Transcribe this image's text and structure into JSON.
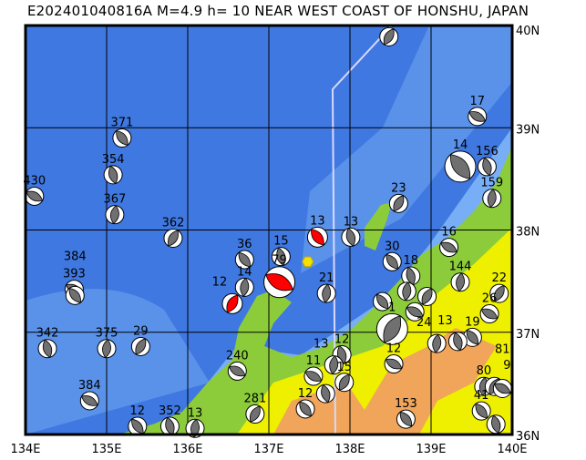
{
  "title": "E202401040816A M=4.9 h= 10 NEAR WEST COAST OF HONSHU, JAPAN",
  "map": {
    "lon_range": [
      134,
      140
    ],
    "lat_range": [
      36,
      40
    ],
    "lon_labels": [
      "134E",
      "135E",
      "136E",
      "137E",
      "138E",
      "139E",
      "140E"
    ],
    "lat_labels": [
      "36N",
      "37N",
      "38N",
      "39N",
      "40N"
    ],
    "colors": {
      "sea_deep": "#3f78e0",
      "sea_shallow": "#78aef5",
      "land_low": "#8ccc3a",
      "land_mid": "#eef000",
      "land_high": "#f0a55a",
      "event_highlight": "#ff0000",
      "event_other": "#707070",
      "epicenter_marker": "#f5e000",
      "track": "#d8d8ff"
    },
    "epicenter": {
      "lon": 137.48,
      "lat": 37.69
    },
    "events": [
      {
        "label": "430",
        "lon": 134.11,
        "lat": 38.33,
        "type": "other"
      },
      {
        "label": "371",
        "lon": 135.19,
        "lat": 38.9,
        "type": "other"
      },
      {
        "label": "354",
        "lon": 135.08,
        "lat": 38.54,
        "type": "other"
      },
      {
        "label": "367",
        "lon": 135.1,
        "lat": 38.15,
        "type": "other"
      },
      {
        "label": "362",
        "lon": 135.82,
        "lat": 37.92,
        "type": "other"
      },
      {
        "label": "393",
        "lon": 134.6,
        "lat": 37.42,
        "type": "other"
      },
      {
        "label": "384",
        "lon": 134.61,
        "lat": 37.36,
        "type": "other"
      },
      {
        "label": "342",
        "lon": 134.27,
        "lat": 36.84,
        "type": "other"
      },
      {
        "label": "375",
        "lon": 135.0,
        "lat": 36.84,
        "type": "other"
      },
      {
        "label": "29",
        "lon": 135.42,
        "lat": 36.86,
        "type": "other"
      },
      {
        "label": "384",
        "lon": 134.79,
        "lat": 36.33,
        "type": "other"
      },
      {
        "label": "12",
        "lon": 135.38,
        "lat": 36.08,
        "type": "other"
      },
      {
        "label": "352",
        "lon": 135.78,
        "lat": 36.08,
        "type": "other"
      },
      {
        "label": "13",
        "lon": 136.09,
        "lat": 36.06,
        "type": "other"
      },
      {
        "label": "281",
        "lon": 136.83,
        "lat": 36.2,
        "type": "other"
      },
      {
        "label": "240",
        "lon": 136.61,
        "lat": 36.62,
        "type": "other"
      },
      {
        "label": "36",
        "lon": 136.7,
        "lat": 37.71,
        "type": "other"
      },
      {
        "label": "15",
        "lon": 137.15,
        "lat": 37.74,
        "type": "other"
      },
      {
        "label": "14",
        "lon": 136.7,
        "lat": 37.44,
        "type": "other"
      },
      {
        "label": "12",
        "lon": 136.55,
        "lat": 37.28,
        "type": "highlight"
      },
      {
        "label": "79",
        "lon": 137.13,
        "lat": 37.49,
        "type": "highlight",
        "big": true
      },
      {
        "label": "13",
        "lon": 137.6,
        "lat": 37.93,
        "type": "highlight"
      },
      {
        "label": "13",
        "lon": 138.01,
        "lat": 37.93,
        "type": "other"
      },
      {
        "label": "21",
        "lon": 137.71,
        "lat": 37.38,
        "type": "other"
      },
      {
        "label": "",
        "lon": 138.48,
        "lat": 39.89,
        "type": "other"
      },
      {
        "label": "17",
        "lon": 139.57,
        "lat": 39.11,
        "type": "other"
      },
      {
        "label": "14",
        "lon": 139.36,
        "lat": 38.62,
        "type": "other",
        "big": true
      },
      {
        "label": "156",
        "lon": 139.69,
        "lat": 38.62,
        "type": "other"
      },
      {
        "label": "159",
        "lon": 139.75,
        "lat": 38.31,
        "type": "other"
      },
      {
        "label": "23",
        "lon": 138.6,
        "lat": 38.26,
        "type": "other"
      },
      {
        "label": "16",
        "lon": 139.22,
        "lat": 37.83,
        "type": "other"
      },
      {
        "label": "30",
        "lon": 138.52,
        "lat": 37.69,
        "type": "other"
      },
      {
        "label": "18",
        "lon": 138.75,
        "lat": 37.55,
        "type": "other"
      },
      {
        "label": "144",
        "lon": 139.36,
        "lat": 37.49,
        "type": "other"
      },
      {
        "label": "22",
        "lon": 139.84,
        "lat": 37.38,
        "type": "other"
      },
      {
        "label": "26",
        "lon": 139.72,
        "lat": 37.18,
        "type": "other"
      },
      {
        "label": "19",
        "lon": 139.51,
        "lat": 36.95,
        "type": "other"
      },
      {
        "label": "13",
        "lon": 139.33,
        "lat": 36.91,
        "type": "other"
      },
      {
        "label": "24",
        "lon": 139.07,
        "lat": 36.89,
        "type": "other"
      },
      {
        "label": "1",
        "lon": 138.52,
        "lat": 37.03,
        "type": "other",
        "big": true
      },
      {
        "label": "12",
        "lon": 138.54,
        "lat": 36.69,
        "type": "other"
      },
      {
        "label": "153",
        "lon": 138.69,
        "lat": 36.15,
        "type": "other"
      },
      {
        "label": "12",
        "lon": 137.9,
        "lat": 36.78,
        "type": "other"
      },
      {
        "label": "13",
        "lon": 137.8,
        "lat": 36.68,
        "type": "other"
      },
      {
        "label": "15",
        "lon": 137.93,
        "lat": 36.51,
        "type": "other"
      },
      {
        "label": "11",
        "lon": 137.55,
        "lat": 36.57,
        "type": "other"
      },
      {
        "label": "12",
        "lon": 137.45,
        "lat": 36.25,
        "type": "other"
      },
      {
        "label": "",
        "lon": 137.7,
        "lat": 36.4,
        "type": "other"
      },
      {
        "label": "80",
        "lon": 139.65,
        "lat": 36.47,
        "type": "other"
      },
      {
        "label": "9",
        "lon": 139.78,
        "lat": 36.47,
        "type": "other"
      },
      {
        "label": "81",
        "lon": 139.88,
        "lat": 36.45,
        "type": "other"
      },
      {
        "label": "41",
        "lon": 139.62,
        "lat": 36.23,
        "type": "other"
      },
      {
        "label": "",
        "lon": 139.8,
        "lat": 36.1,
        "type": "other"
      },
      {
        "label": "",
        "lon": 138.7,
        "lat": 37.4,
        "type": "other"
      },
      {
        "label": "",
        "lon": 138.95,
        "lat": 37.35,
        "type": "other"
      },
      {
        "label": "",
        "lon": 138.8,
        "lat": 37.2,
        "type": "other"
      },
      {
        "label": "",
        "lon": 138.4,
        "lat": 37.3,
        "type": "other"
      }
    ]
  }
}
